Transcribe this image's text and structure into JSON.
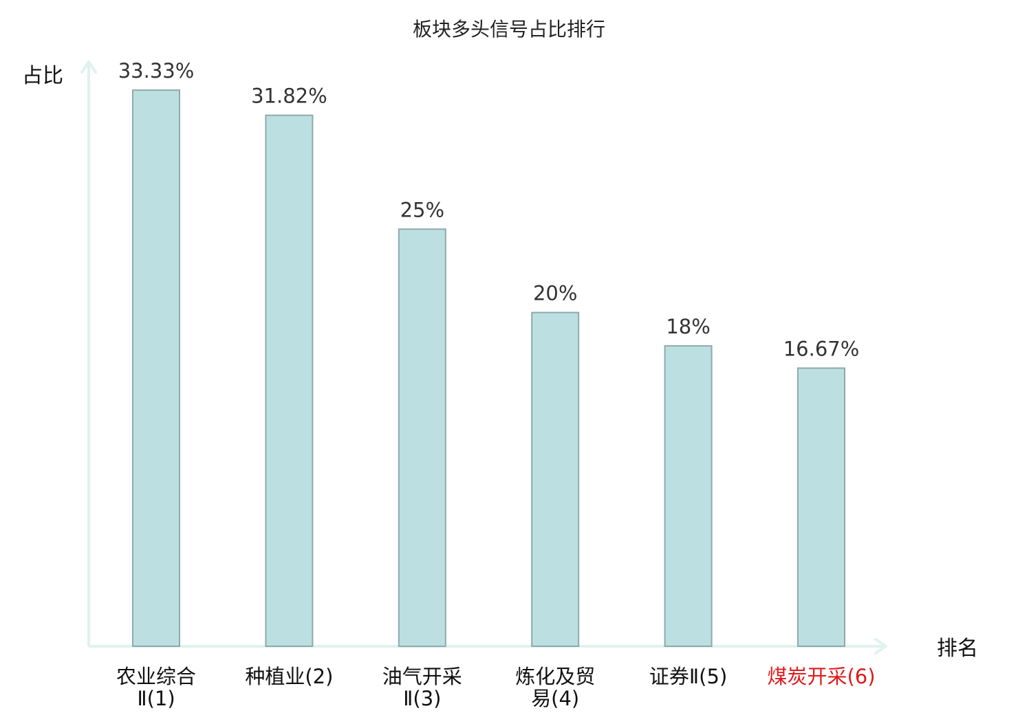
{
  "chart_data": {
    "type": "bar",
    "title": "板块多头信号占比排行",
    "xlabel": "排名",
    "ylabel": "占比",
    "ylim": [
      0,
      35
    ],
    "grid": false,
    "legend": "none",
    "categories": [
      [
        "农业综合",
        "Ⅱ(1)"
      ],
      [
        "种植业(2)"
      ],
      [
        "油气开采",
        "Ⅱ(3)"
      ],
      [
        "炼化及贸",
        "易(4)"
      ],
      [
        "证券Ⅱ(5)"
      ],
      [
        "煤炭开采(6)"
      ]
    ],
    "values": [
      33.33,
      31.82,
      25,
      20,
      18,
      16.67
    ],
    "value_labels": [
      "33.33%",
      "31.82%",
      "25%",
      "20%",
      "18%",
      "16.67%"
    ],
    "highlight_index": 5
  },
  "colors": {
    "bar_fill": "#bce0e2",
    "bar_stroke": "#8fa9aa",
    "axis": "#dff2ee",
    "label": "#111111",
    "highlight_label": "#e0191b"
  }
}
